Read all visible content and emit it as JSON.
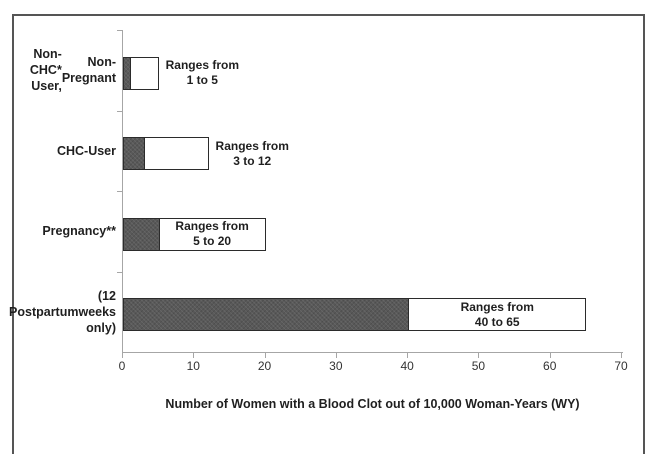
{
  "chart_data": {
    "type": "bar",
    "orientation": "horizontal",
    "title": "",
    "xlabel": "Number of Women with a Blood Clot out of 10,000 Woman-Years (WY)",
    "ylabel": "",
    "xlim": [
      0,
      70
    ],
    "x_ticks": [
      0,
      10,
      20,
      30,
      40,
      50,
      60,
      70
    ],
    "grid": false,
    "legend": false,
    "bars": [
      {
        "category_lines": [
          "Non-CHC* User,",
          "Non-Pregnant"
        ],
        "range_low": 1,
        "range_high": 5,
        "annotation_lines": [
          "Ranges from",
          "1 to 5"
        ],
        "annotation_position": "outside-right"
      },
      {
        "category_lines": [
          "CHC-User"
        ],
        "range_low": 3,
        "range_high": 12,
        "annotation_lines": [
          "Ranges from",
          "3 to 12"
        ],
        "annotation_position": "outside-right"
      },
      {
        "category_lines": [
          "Pregnancy**"
        ],
        "range_low": 5,
        "range_high": 20,
        "annotation_lines": [
          "Ranges from",
          "5 to 20"
        ],
        "annotation_position": "inside"
      },
      {
        "category_lines": [
          "Postpartum",
          "(12 weeks only)"
        ],
        "range_low": 40,
        "range_high": 65,
        "annotation_lines": [
          "Ranges from",
          "40 to 65"
        ],
        "annotation_position": "inside"
      }
    ],
    "colors": {
      "dark_segment": "#595959",
      "light_segment": "#ffffff",
      "bar_border": "#2b2b2b",
      "axis_line": "#a6a6a6",
      "text": "#1f1f1f",
      "figure_border": "#555555",
      "background": "#ffffff"
    }
  }
}
